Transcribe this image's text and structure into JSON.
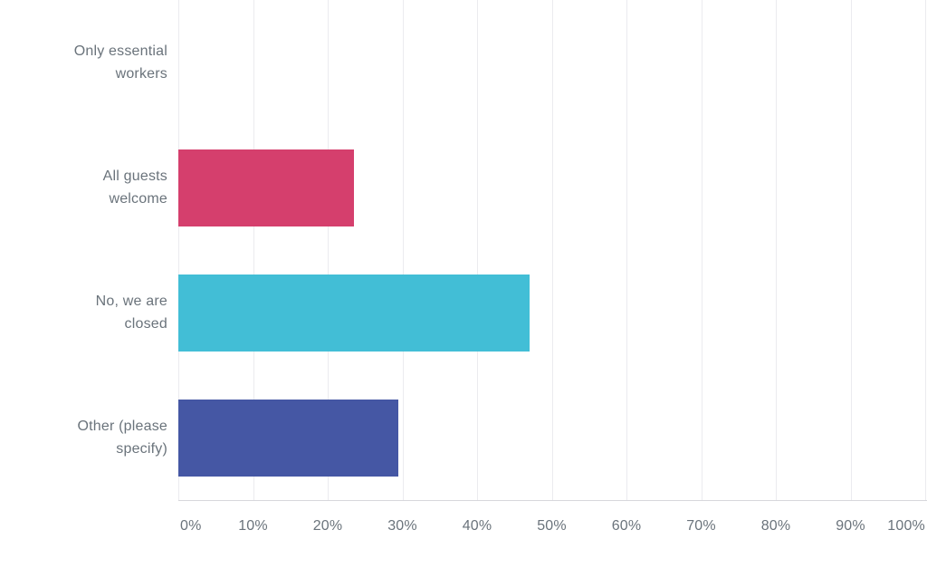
{
  "chart_data": {
    "type": "bar",
    "orientation": "horizontal",
    "title": "",
    "categories": [
      "Only essential workers",
      "All guests welcome",
      "No, we are closed",
      "Other (please specify)"
    ],
    "category_lines": [
      [
        "Only essential",
        "workers"
      ],
      [
        "All guests",
        "welcome"
      ],
      [
        "No, we are",
        "closed"
      ],
      [
        "Other (please",
        "specify)"
      ]
    ],
    "values": [
      0,
      23.53,
      47.06,
      29.41
    ],
    "value_unit": "%",
    "bar_colors": [
      null,
      "#d53f6d",
      "#42bed6",
      "#4557a4"
    ],
    "x_ticks": [
      "0%",
      "10%",
      "20%",
      "30%",
      "40%",
      "50%",
      "60%",
      "70%",
      "80%",
      "90%",
      "100%"
    ],
    "xlim": [
      0,
      100
    ],
    "grid": "vertical-gridlines-only",
    "legend": "none",
    "colors": {
      "label_text": "#6a737b",
      "gridline": "#ebebef",
      "axis_line": "#d7d7dc",
      "background": "#ffffff"
    }
  }
}
